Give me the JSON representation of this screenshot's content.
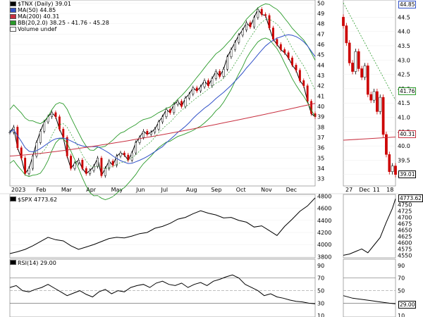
{
  "chart_data": {
    "type": "line",
    "months": [
      "2023",
      "Feb",
      "Mar",
      "Apr",
      "May",
      "Jun",
      "Jul",
      "Aug",
      "Sep",
      "Oct",
      "Nov",
      "Dec"
    ],
    "detail_x_labels": [
      "27",
      "Dec",
      "11",
      "18"
    ],
    "main_panel": {
      "title": "$TNX (Daily) 39.01",
      "legend": [
        "MA(50) 44.85",
        "MA(200) 40.31",
        "BB(20,2.0) 38.25 - 41.76 - 45.28",
        "Volume undef"
      ],
      "yticks": [
        33,
        34,
        35,
        36,
        37,
        38,
        39,
        40,
        41,
        42,
        43,
        44,
        45,
        46,
        47,
        48,
        49,
        50
      ],
      "ylim": [
        32.3,
        50.3
      ],
      "close_points": [
        [
          0,
          37.5
        ],
        [
          3,
          38.0
        ],
        [
          6,
          36.0
        ],
        [
          9,
          35.0
        ],
        [
          12,
          33.5
        ],
        [
          15,
          34.0
        ],
        [
          18,
          35.2
        ],
        [
          21,
          36.5
        ],
        [
          24,
          37.6
        ],
        [
          27,
          38.5
        ],
        [
          30,
          39.0
        ],
        [
          33,
          39.4
        ],
        [
          36,
          39.0
        ],
        [
          39,
          37.8
        ],
        [
          42,
          37.0
        ],
        [
          45,
          35.2
        ],
        [
          48,
          34.0
        ],
        [
          51,
          34.5
        ],
        [
          54,
          34.8
        ],
        [
          57,
          34.0
        ],
        [
          60,
          33.5
        ],
        [
          63,
          33.8
        ],
        [
          66,
          34.2
        ],
        [
          69,
          35.0
        ],
        [
          72,
          33.3
        ],
        [
          75,
          34.0
        ],
        [
          78,
          34.7
        ],
        [
          81,
          34.3
        ],
        [
          84,
          35.2
        ],
        [
          87,
          35.5
        ],
        [
          90,
          35.3
        ],
        [
          93,
          34.8
        ],
        [
          96,
          35.5
        ],
        [
          99,
          36.5
        ],
        [
          102,
          37.0
        ],
        [
          105,
          37.6
        ],
        [
          108,
          37.3
        ],
        [
          111,
          37.5
        ],
        [
          114,
          37.8
        ],
        [
          117,
          38.5
        ],
        [
          120,
          39.0
        ],
        [
          123,
          39.7
        ],
        [
          126,
          39.4
        ],
        [
          129,
          40.2
        ],
        [
          132,
          40.5
        ],
        [
          135,
          40.0
        ],
        [
          138,
          40.8
        ],
        [
          141,
          41.2
        ],
        [
          144,
          41.8
        ],
        [
          147,
          41.5
        ],
        [
          150,
          41.9
        ],
        [
          153,
          42.5
        ],
        [
          156,
          42.0
        ],
        [
          159,
          42.7
        ],
        [
          162,
          43.4
        ],
        [
          165,
          42.9
        ],
        [
          168,
          43.6
        ],
        [
          171,
          44.8
        ],
        [
          174,
          45.5
        ],
        [
          177,
          46.2
        ],
        [
          180,
          46.9
        ],
        [
          183,
          47.4
        ],
        [
          186,
          48.1
        ],
        [
          189,
          47.7
        ],
        [
          192,
          48.6
        ],
        [
          195,
          49.4
        ],
        [
          198,
          48.9
        ],
        [
          201,
          48.8
        ],
        [
          204,
          47.6
        ],
        [
          207,
          46.5
        ],
        [
          210,
          46.0
        ],
        [
          213,
          45.5
        ],
        [
          216,
          45.2
        ],
        [
          219,
          44.7
        ],
        [
          222,
          44.0
        ],
        [
          225,
          43.5
        ],
        [
          228,
          42.5
        ],
        [
          231,
          42.0
        ],
        [
          234,
          40.5
        ],
        [
          237,
          39.3
        ],
        [
          240,
          39.0
        ]
      ]
    },
    "detail_panel": {
      "yticks": [
        39.0,
        39.5,
        40.0,
        40.5,
        41.0,
        41.5,
        42.0,
        42.5,
        43.0,
        43.5,
        44.0,
        44.5
      ],
      "ylim": [
        38.6,
        45.1
      ],
      "tags": [
        "44.85",
        "41.76",
        "40.31",
        "39.01"
      ],
      "close_points": [
        [
          0,
          44.2
        ],
        [
          1,
          43.6
        ],
        [
          2,
          42.9
        ],
        [
          3,
          42.6
        ],
        [
          4,
          43.3
        ],
        [
          5,
          42.7
        ],
        [
          6,
          42.4
        ],
        [
          7,
          42.8
        ],
        [
          8,
          41.8
        ],
        [
          9,
          41.6
        ],
        [
          10,
          41.9
        ],
        [
          11,
          41.2
        ],
        [
          12,
          41.7
        ],
        [
          13,
          40.4
        ],
        [
          14,
          39.7
        ],
        [
          15,
          39.1
        ],
        [
          16,
          39.3
        ],
        [
          17,
          39.0
        ]
      ]
    },
    "spx_panel": {
      "title": "$SPX 4773.62",
      "yticks": [
        3800,
        4000,
        4200,
        4400,
        4600,
        4800
      ],
      "ylim": [
        3780,
        4830
      ],
      "close_points": [
        [
          0,
          3850
        ],
        [
          6,
          3880
        ],
        [
          12,
          3920
        ],
        [
          18,
          3980
        ],
        [
          24,
          4050
        ],
        [
          30,
          4120
        ],
        [
          36,
          4080
        ],
        [
          42,
          4060
        ],
        [
          48,
          3980
        ],
        [
          54,
          3920
        ],
        [
          60,
          3960
        ],
        [
          66,
          4000
        ],
        [
          72,
          4050
        ],
        [
          78,
          4100
        ],
        [
          84,
          4120
        ],
        [
          90,
          4110
        ],
        [
          96,
          4140
        ],
        [
          102,
          4180
        ],
        [
          108,
          4200
        ],
        [
          114,
          4270
        ],
        [
          120,
          4300
        ],
        [
          126,
          4350
        ],
        [
          132,
          4420
        ],
        [
          138,
          4450
        ],
        [
          144,
          4510
        ],
        [
          150,
          4560
        ],
        [
          156,
          4520
        ],
        [
          162,
          4490
        ],
        [
          168,
          4440
        ],
        [
          174,
          4450
        ],
        [
          180,
          4400
        ],
        [
          186,
          4370
        ],
        [
          192,
          4290
        ],
        [
          198,
          4310
        ],
        [
          204,
          4230
        ],
        [
          210,
          4150
        ],
        [
          216,
          4300
        ],
        [
          222,
          4420
        ],
        [
          228,
          4550
        ],
        [
          234,
          4640
        ],
        [
          240,
          4773
        ]
      ],
      "detail_yticks": [
        4550,
        4575,
        4600,
        4625,
        4650,
        4675,
        4700,
        4725,
        4750
      ],
      "detail_ylim": [
        4540,
        4790
      ],
      "detail_tag": "4773.62",
      "detail_points": [
        [
          0,
          4550
        ],
        [
          2,
          4555
        ],
        [
          4,
          4565
        ],
        [
          6,
          4575
        ],
        [
          8,
          4560
        ],
        [
          10,
          4590
        ],
        [
          12,
          4620
        ],
        [
          14,
          4680
        ],
        [
          16,
          4735
        ],
        [
          17,
          4773
        ]
      ]
    },
    "rsi_panel": {
      "title": "RSI(14) 29.00",
      "yticks": [
        10,
        30,
        50,
        70,
        90
      ],
      "ylim": [
        8,
        100
      ],
      "tag": "29.00",
      "close_points": [
        [
          0,
          55
        ],
        [
          5,
          58
        ],
        [
          10,
          50
        ],
        [
          15,
          48
        ],
        [
          20,
          52
        ],
        [
          25,
          55
        ],
        [
          30,
          60
        ],
        [
          35,
          54
        ],
        [
          40,
          48
        ],
        [
          45,
          42
        ],
        [
          50,
          46
        ],
        [
          55,
          50
        ],
        [
          60,
          44
        ],
        [
          65,
          40
        ],
        [
          70,
          48
        ],
        [
          75,
          52
        ],
        [
          80,
          45
        ],
        [
          85,
          50
        ],
        [
          90,
          48
        ],
        [
          95,
          55
        ],
        [
          100,
          58
        ],
        [
          105,
          60
        ],
        [
          110,
          55
        ],
        [
          115,
          62
        ],
        [
          120,
          65
        ],
        [
          125,
          60
        ],
        [
          130,
          58
        ],
        [
          135,
          62
        ],
        [
          140,
          55
        ],
        [
          145,
          60
        ],
        [
          150,
          63
        ],
        [
          155,
          58
        ],
        [
          160,
          65
        ],
        [
          165,
          68
        ],
        [
          170,
          72
        ],
        [
          175,
          75
        ],
        [
          180,
          70
        ],
        [
          185,
          60
        ],
        [
          190,
          55
        ],
        [
          195,
          50
        ],
        [
          200,
          42
        ],
        [
          205,
          45
        ],
        [
          210,
          40
        ],
        [
          215,
          38
        ],
        [
          220,
          35
        ],
        [
          225,
          33
        ],
        [
          230,
          32
        ],
        [
          235,
          30
        ],
        [
          240,
          29
        ]
      ],
      "detail_points": [
        [
          0,
          42
        ],
        [
          3,
          38
        ],
        [
          6,
          36
        ],
        [
          9,
          34
        ],
        [
          12,
          32
        ],
        [
          15,
          30
        ],
        [
          17,
          29
        ]
      ]
    }
  }
}
